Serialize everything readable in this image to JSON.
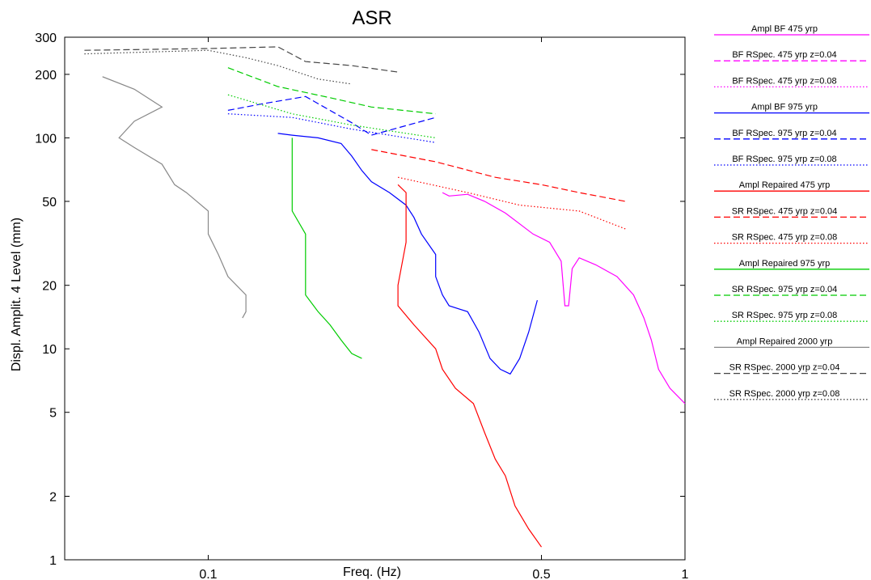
{
  "chart_data": {
    "type": "line",
    "title": "ASR",
    "xlabel": "Freq. (Hz)",
    "ylabel": "Displ. Amplit. 4 Level (mm)",
    "xscale": "log",
    "yscale": "log",
    "xlim": [
      0.05,
      1
    ],
    "ylim": [
      1,
      300
    ],
    "xticks": [
      0.1,
      0.5,
      1
    ],
    "xtick_labels": [
      "0.1",
      "0.5",
      "1"
    ],
    "yticks": [
      1,
      2,
      5,
      10,
      20,
      50,
      100,
      200,
      300
    ],
    "ytick_labels": [
      "1",
      "2",
      "5",
      "10",
      "20",
      "50",
      "100",
      "200",
      "300"
    ],
    "grid": false,
    "legend_position": "right",
    "series": [
      {
        "name": "Ampl BF 475 yrp",
        "color": "#ff00ff",
        "dash": "solid",
        "points": [
          [
            0.31,
            55
          ],
          [
            0.32,
            53
          ],
          [
            0.35,
            54
          ],
          [
            0.38,
            50
          ],
          [
            0.42,
            44
          ],
          [
            0.48,
            35
          ],
          [
            0.52,
            32
          ],
          [
            0.55,
            26
          ],
          [
            0.56,
            16
          ],
          [
            0.57,
            16
          ],
          [
            0.58,
            24
          ],
          [
            0.6,
            27
          ],
          [
            0.65,
            25
          ],
          [
            0.72,
            22
          ],
          [
            0.78,
            18
          ],
          [
            0.82,
            14
          ],
          [
            0.85,
            11
          ],
          [
            0.88,
            8
          ],
          [
            0.93,
            6.5
          ],
          [
            1.0,
            5.5
          ]
        ]
      },
      {
        "name": "BF RSpec. 475 yrp z=0.04",
        "color": "#ff00ff",
        "dash": "dashed",
        "points": []
      },
      {
        "name": "BF RSpec. 475 yrp z=0.08",
        "color": "#ff00ff",
        "dash": "dotted",
        "points": []
      },
      {
        "name": "Ampl BF 975 yrp",
        "color": "#0000ff",
        "dash": "solid",
        "points": [
          [
            0.14,
            105
          ],
          [
            0.15,
            103
          ],
          [
            0.17,
            100
          ],
          [
            0.19,
            94
          ],
          [
            0.2,
            82
          ],
          [
            0.21,
            70
          ],
          [
            0.22,
            62
          ],
          [
            0.24,
            55
          ],
          [
            0.26,
            48
          ],
          [
            0.27,
            42
          ],
          [
            0.28,
            35
          ],
          [
            0.3,
            28
          ],
          [
            0.3,
            22
          ],
          [
            0.31,
            18
          ],
          [
            0.32,
            16
          ],
          [
            0.35,
            15
          ],
          [
            0.37,
            12
          ],
          [
            0.39,
            9
          ],
          [
            0.41,
            8
          ],
          [
            0.43,
            7.6
          ],
          [
            0.45,
            9
          ],
          [
            0.47,
            12
          ],
          [
            0.49,
            17
          ]
        ]
      },
      {
        "name": "BF RSpec. 975 yrp z=0.04",
        "color": "#0000ff",
        "dash": "dashed",
        "points": [
          [
            0.11,
            135
          ],
          [
            0.13,
            145
          ],
          [
            0.16,
            157
          ],
          [
            0.2,
            118
          ],
          [
            0.22,
            103
          ],
          [
            0.3,
            125
          ]
        ]
      },
      {
        "name": "BF RSpec. 975 yrp z=0.08",
        "color": "#0000ff",
        "dash": "dotted",
        "points": [
          [
            0.11,
            130
          ],
          [
            0.15,
            125
          ],
          [
            0.2,
            110
          ],
          [
            0.3,
            95
          ]
        ]
      },
      {
        "name": "Ampl Repaired 475 yrp",
        "color": "#ff0000",
        "dash": "solid",
        "points": [
          [
            0.25,
            60
          ],
          [
            0.26,
            55
          ],
          [
            0.26,
            45
          ],
          [
            0.26,
            32
          ],
          [
            0.25,
            20
          ],
          [
            0.25,
            16
          ],
          [
            0.27,
            13
          ],
          [
            0.3,
            10
          ],
          [
            0.31,
            8
          ],
          [
            0.33,
            6.5
          ],
          [
            0.36,
            5.5
          ],
          [
            0.38,
            4
          ],
          [
            0.4,
            3
          ],
          [
            0.42,
            2.5
          ],
          [
            0.44,
            1.8
          ],
          [
            0.47,
            1.4
          ],
          [
            0.5,
            1.15
          ]
        ]
      },
      {
        "name": "SR RSpec. 475 yrp z=0.04",
        "color": "#ff0000",
        "dash": "dashed",
        "points": [
          [
            0.22,
            88
          ],
          [
            0.3,
            77
          ],
          [
            0.4,
            65
          ],
          [
            0.5,
            60
          ],
          [
            0.6,
            55
          ],
          [
            0.75,
            50
          ]
        ]
      },
      {
        "name": "SR RSpec. 475 yrp z=0.08",
        "color": "#ff0000",
        "dash": "dotted",
        "points": [
          [
            0.25,
            65
          ],
          [
            0.35,
            55
          ],
          [
            0.45,
            48
          ],
          [
            0.6,
            45
          ],
          [
            0.75,
            37
          ]
        ]
      },
      {
        "name": "Ampl Repaired 975 yrp",
        "color": "#00cc00",
        "dash": "solid",
        "points": [
          [
            0.15,
            100
          ],
          [
            0.15,
            80
          ],
          [
            0.15,
            60
          ],
          [
            0.15,
            45
          ],
          [
            0.16,
            35
          ],
          [
            0.16,
            25
          ],
          [
            0.16,
            18
          ],
          [
            0.17,
            15
          ],
          [
            0.18,
            13
          ],
          [
            0.19,
            11
          ],
          [
            0.2,
            9.5
          ],
          [
            0.21,
            9
          ]
        ]
      },
      {
        "name": "SR RSpec. 975 yrp z=0.04",
        "color": "#00cc00",
        "dash": "dashed",
        "points": [
          [
            0.11,
            215
          ],
          [
            0.14,
            175
          ],
          [
            0.18,
            155
          ],
          [
            0.22,
            140
          ],
          [
            0.3,
            130
          ]
        ]
      },
      {
        "name": "SR RSpec. 975 yrp z=0.08",
        "color": "#00cc00",
        "dash": "dotted",
        "points": [
          [
            0.11,
            160
          ],
          [
            0.15,
            130
          ],
          [
            0.2,
            115
          ],
          [
            0.3,
            100
          ]
        ]
      },
      {
        "name": "Ampl Repaired 2000 yrp",
        "color": "#888888",
        "dash": "solid",
        "points": [
          [
            0.06,
            195
          ],
          [
            0.07,
            170
          ],
          [
            0.08,
            140
          ],
          [
            0.07,
            120
          ],
          [
            0.065,
            100
          ],
          [
            0.07,
            90
          ],
          [
            0.08,
            75
          ],
          [
            0.085,
            60
          ],
          [
            0.09,
            55
          ],
          [
            0.1,
            45
          ],
          [
            0.1,
            35
          ],
          [
            0.105,
            28
          ],
          [
            0.11,
            22
          ],
          [
            0.12,
            18
          ],
          [
            0.12,
            15
          ],
          [
            0.118,
            14
          ]
        ]
      },
      {
        "name": "SR RSpec. 2000 yrp z=0.04",
        "color": "#444444",
        "dash": "dashed",
        "points": [
          [
            0.055,
            260
          ],
          [
            0.1,
            265
          ],
          [
            0.14,
            270
          ],
          [
            0.16,
            230
          ],
          [
            0.2,
            220
          ],
          [
            0.25,
            205
          ]
        ]
      },
      {
        "name": "SR RSpec. 2000 yrp z=0.08",
        "color": "#444444",
        "dash": "dotted",
        "points": [
          [
            0.055,
            250
          ],
          [
            0.1,
            260
          ],
          [
            0.12,
            240
          ],
          [
            0.14,
            220
          ],
          [
            0.17,
            190
          ],
          [
            0.2,
            180
          ]
        ]
      }
    ]
  }
}
